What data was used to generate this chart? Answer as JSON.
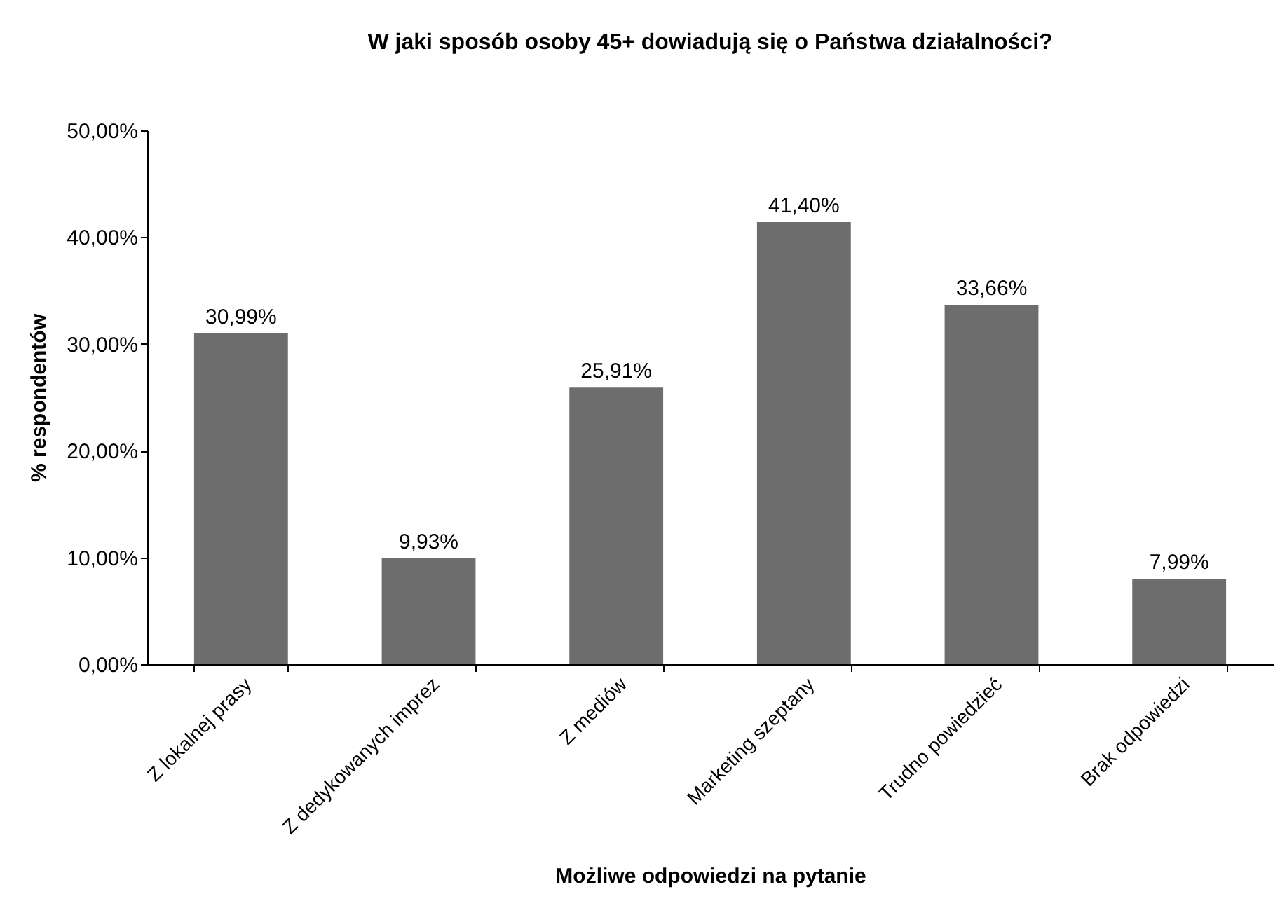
{
  "chart_data": {
    "type": "bar",
    "title": "W jaki sposób osoby 45+ dowiadują się o Państwa działalności?",
    "xlabel": "Możliwe odpowiedzi na pytanie",
    "ylabel": "% respondentów",
    "categories": [
      "Z lokalnej prasy",
      "Z dedykowanych imprez",
      "Z mediów",
      "Marketing szeptany",
      "Trudno powiedzieć",
      "Brak odpowiedzi"
    ],
    "values": [
      30.99,
      9.93,
      25.91,
      41.4,
      33.66,
      7.99
    ],
    "value_labels": [
      "30,99%",
      "9,93%",
      "25,91%",
      "41,40%",
      "33,66%",
      "7,99%"
    ],
    "color": "#6d6d6d",
    "ylim": [
      0,
      50
    ],
    "yticks": [
      {
        "value": 0,
        "label": "0,00%"
      },
      {
        "value": 10,
        "label": "10,00%"
      },
      {
        "value": 20,
        "label": "20,00%"
      },
      {
        "value": 30,
        "label": "30,00%"
      },
      {
        "value": 40,
        "label": "40,00%"
      },
      {
        "value": 50,
        "label": "50,00%"
      }
    ],
    "grid": false
  }
}
